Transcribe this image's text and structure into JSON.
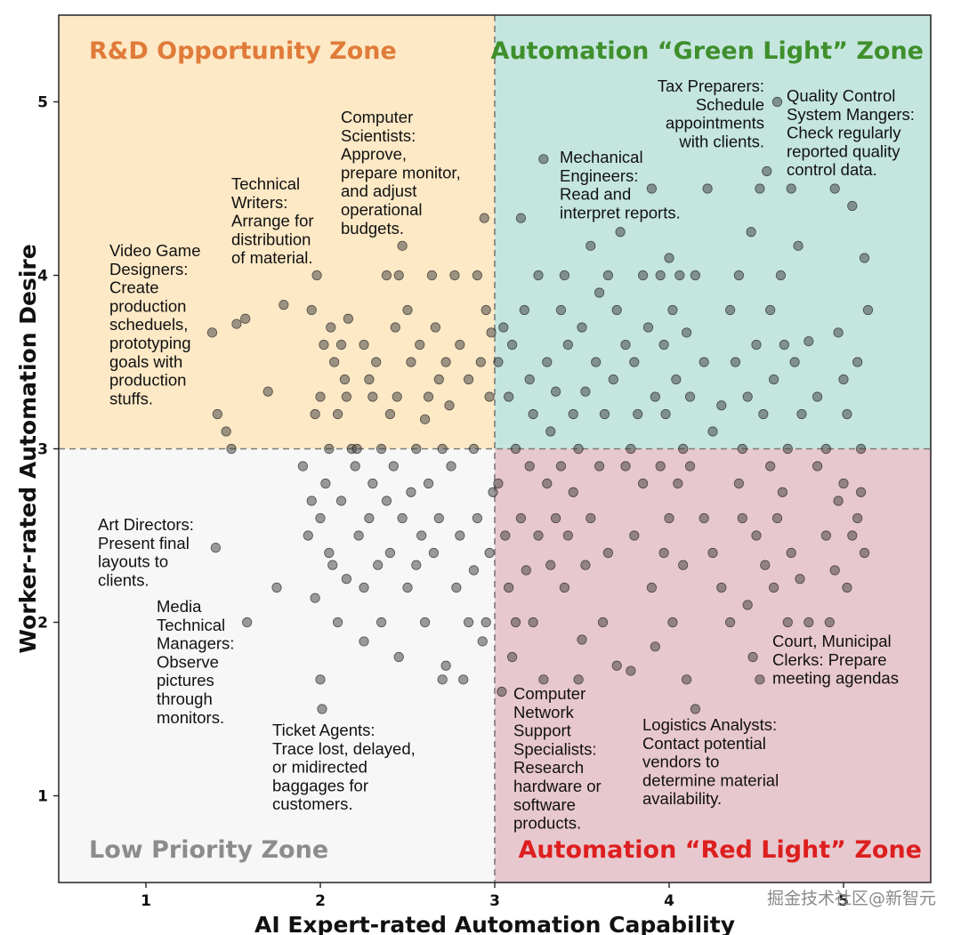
{
  "chart_data": {
    "type": "scatter",
    "title": "",
    "xlabel": "AI Expert-rated Automation Capability",
    "ylabel": "Worker-rated Automation Desire",
    "xlim": [
      0.5,
      5.5
    ],
    "ylim": [
      0.5,
      5.5
    ],
    "xticks": [
      "1",
      "2",
      "3",
      "4",
      "5"
    ],
    "yticks": [
      "1",
      "2",
      "3",
      "4",
      "5"
    ],
    "threshold_x": 3,
    "threshold_y": 3,
    "legend": "none",
    "grid": false,
    "zones": [
      {
        "name": "R&D Opportunity Zone",
        "fill": "#fde9c6",
        "title_color": "#e07b39",
        "x": [
          0.5,
          3
        ],
        "y": [
          3,
          5.5
        ]
      },
      {
        "name": "Automation “Green Light” Zone",
        "fill": "#c5e6df",
        "title_color": "#3f8f2c",
        "x": [
          3,
          5.5
        ],
        "y": [
          3,
          5.5
        ]
      },
      {
        "name": "Low Priority Zone",
        "fill": "#f7f7f7",
        "title_color": "#8c8c8c",
        "x": [
          0.5,
          3
        ],
        "y": [
          0.5,
          3
        ]
      },
      {
        "name": "Automation “Red Light” Zone",
        "fill": "#e8c8cf",
        "title_color": "#dd1f1f",
        "x": [
          3,
          5.5
        ],
        "y": [
          0.5,
          3
        ]
      }
    ],
    "annotations": [
      {
        "lines": [
          "Video Game",
          "Designers:",
          "Create",
          "production",
          "scheduels,",
          "prototyping",
          "goals with",
          "production",
          "stuffs."
        ],
        "x": 1.3,
        "y": 3.7
      },
      {
        "lines": [
          "Technical",
          "Writers:",
          "Arrange for",
          "distribution",
          "of material."
        ],
        "x": 1.5,
        "y": 3.2
      },
      {
        "lines": [
          "Computer",
          "Scientists:",
          "Approve,",
          "prepare monitor,",
          "and adjust",
          "operational",
          "budgets."
        ],
        "x": 1.5,
        "y": 3.5
      },
      {
        "lines": [
          "Mechanical",
          "Engineers:",
          "Read and",
          "interpret reports."
        ],
        "x": 3.3,
        "y": 4.66
      },
      {
        "lines": [
          "Tax Preparers:",
          "Schedule",
          "appointments",
          "with clients."
        ],
        "x": 4.57,
        "y": 5.0
      },
      {
        "lines": [
          "Quality Control",
          "System Mangers:",
          "Check regularly",
          "reported quality",
          "control data."
        ],
        "x": 4.9,
        "y": 4.5
      },
      {
        "lines": [
          "Art Directors:",
          "Present final",
          "layouts to",
          "clients."
        ],
        "x": 1.4,
        "y": 2.43
      },
      {
        "lines": [
          "Media",
          "Technical",
          "Managers:",
          "Observe",
          "pictures",
          "through",
          "monitors."
        ],
        "x": 1.58,
        "y": 2.0
      },
      {
        "lines": [
          "Ticket Agents:",
          "Trace lost, delayed,",
          "or midirected",
          "baggages for",
          "customers."
        ],
        "x": 2.0,
        "y": 1.5
      },
      {
        "lines": [
          "Computer",
          "Network",
          "Support",
          "Specialists:",
          "Research",
          "hardware or",
          "software",
          "products."
        ],
        "x": 3.02,
        "y": 1.6
      },
      {
        "lines": [
          "Logistics Analysts:",
          "Contact potential",
          "vendors to",
          "determine material",
          "availability."
        ],
        "x": 4.07,
        "y": 1.5
      },
      {
        "lines": [
          "Court, Municipal",
          "Clerks: Prepare",
          "meeting agendas"
        ],
        "x": 4.7,
        "y": 2.0
      }
    ],
    "series": [
      {
        "points": [
          [
            1.38,
            3.67
          ],
          [
            1.41,
            3.2
          ],
          [
            1.46,
            3.1
          ],
          [
            1.49,
            3.0
          ],
          [
            1.52,
            3.72
          ],
          [
            1.57,
            3.75
          ],
          [
            1.7,
            3.33
          ],
          [
            1.79,
            3.83
          ],
          [
            1.95,
            3.8
          ],
          [
            1.97,
            3.2
          ],
          [
            1.98,
            4.0
          ],
          [
            2.0,
            3.3
          ],
          [
            2.02,
            3.6
          ],
          [
            2.05,
            3.0
          ],
          [
            2.06,
            3.7
          ],
          [
            2.08,
            3.5
          ],
          [
            2.1,
            3.2
          ],
          [
            2.12,
            3.6
          ],
          [
            2.14,
            3.4
          ],
          [
            2.15,
            3.3
          ],
          [
            2.16,
            3.75
          ],
          [
            2.18,
            3.0
          ],
          [
            2.21,
            3.0
          ],
          [
            2.25,
            3.6
          ],
          [
            2.28,
            3.4
          ],
          [
            2.3,
            3.3
          ],
          [
            2.32,
            3.5
          ],
          [
            2.35,
            3.0
          ],
          [
            2.38,
            4.0
          ],
          [
            2.4,
            3.2
          ],
          [
            2.43,
            3.7
          ],
          [
            2.44,
            3.3
          ],
          [
            2.45,
            4.0
          ],
          [
            2.47,
            4.17
          ],
          [
            2.5,
            3.8
          ],
          [
            2.52,
            3.5
          ],
          [
            2.55,
            3.0
          ],
          [
            2.57,
            3.6
          ],
          [
            2.6,
            3.17
          ],
          [
            2.62,
            3.3
          ],
          [
            2.64,
            4.0
          ],
          [
            2.66,
            3.7
          ],
          [
            2.68,
            3.4
          ],
          [
            2.7,
            3.0
          ],
          [
            2.72,
            3.5
          ],
          [
            2.74,
            3.25
          ],
          [
            2.77,
            4.0
          ],
          [
            2.8,
            3.6
          ],
          [
            2.85,
            3.4
          ],
          [
            2.88,
            3.0
          ],
          [
            2.9,
            4.0
          ],
          [
            2.92,
            3.5
          ],
          [
            2.94,
            4.33
          ],
          [
            2.95,
            3.8
          ],
          [
            2.97,
            3.3
          ],
          [
            2.98,
            3.67
          ],
          [
            1.4,
            2.43
          ],
          [
            1.58,
            2.0
          ],
          [
            1.75,
            2.2
          ],
          [
            1.9,
            2.9
          ],
          [
            1.93,
            2.5
          ],
          [
            1.95,
            2.7
          ],
          [
            1.97,
            2.14
          ],
          [
            2.0,
            2.6
          ],
          [
            2.0,
            1.67
          ],
          [
            2.01,
            1.5
          ],
          [
            2.03,
            2.8
          ],
          [
            2.05,
            2.4
          ],
          [
            2.07,
            2.33
          ],
          [
            2.1,
            2.0
          ],
          [
            2.12,
            2.7
          ],
          [
            2.15,
            2.25
          ],
          [
            2.2,
            2.9
          ],
          [
            2.22,
            2.5
          ],
          [
            2.25,
            2.2
          ],
          [
            2.25,
            1.89
          ],
          [
            2.28,
            2.6
          ],
          [
            2.3,
            2.8
          ],
          [
            2.33,
            2.33
          ],
          [
            2.35,
            2.0
          ],
          [
            2.38,
            2.7
          ],
          [
            2.4,
            2.4
          ],
          [
            2.42,
            2.9
          ],
          [
            2.45,
            1.8
          ],
          [
            2.47,
            2.6
          ],
          [
            2.5,
            2.2
          ],
          [
            2.52,
            2.75
          ],
          [
            2.55,
            2.33
          ],
          [
            2.58,
            2.5
          ],
          [
            2.6,
            2.0
          ],
          [
            2.62,
            2.8
          ],
          [
            2.65,
            2.4
          ],
          [
            2.68,
            2.6
          ],
          [
            2.7,
            1.67
          ],
          [
            2.72,
            1.75
          ],
          [
            2.75,
            2.9
          ],
          [
            2.78,
            2.2
          ],
          [
            2.8,
            2.5
          ],
          [
            2.82,
            1.67
          ],
          [
            2.85,
            2.0
          ],
          [
            2.88,
            2.3
          ],
          [
            2.9,
            2.6
          ],
          [
            2.93,
            1.89
          ],
          [
            2.95,
            2.0
          ],
          [
            2.97,
            2.4
          ],
          [
            2.99,
            2.75
          ],
          [
            3.02,
            3.5
          ],
          [
            3.05,
            3.7
          ],
          [
            3.08,
            3.3
          ],
          [
            3.1,
            3.6
          ],
          [
            3.12,
            3.0
          ],
          [
            3.15,
            4.33
          ],
          [
            3.17,
            3.8
          ],
          [
            3.2,
            3.4
          ],
          [
            3.22,
            3.2
          ],
          [
            3.25,
            4.0
          ],
          [
            3.28,
            4.67
          ],
          [
            3.3,
            3.5
          ],
          [
            3.32,
            3.1
          ],
          [
            3.35,
            3.33
          ],
          [
            3.38,
            3.8
          ],
          [
            3.4,
            4.0
          ],
          [
            3.42,
            3.6
          ],
          [
            3.45,
            3.2
          ],
          [
            3.48,
            3.0
          ],
          [
            3.5,
            3.7
          ],
          [
            3.52,
            3.33
          ],
          [
            3.55,
            4.17
          ],
          [
            3.58,
            3.5
          ],
          [
            3.6,
            3.9
          ],
          [
            3.63,
            3.2
          ],
          [
            3.65,
            4.0
          ],
          [
            3.68,
            3.4
          ],
          [
            3.7,
            3.8
          ],
          [
            3.72,
            4.25
          ],
          [
            3.75,
            3.6
          ],
          [
            3.78,
            3.0
          ],
          [
            3.8,
            3.5
          ],
          [
            3.82,
            3.2
          ],
          [
            3.85,
            4.0
          ],
          [
            3.88,
            3.7
          ],
          [
            3.9,
            4.5
          ],
          [
            3.92,
            3.3
          ],
          [
            3.95,
            4.0
          ],
          [
            3.97,
            3.6
          ],
          [
            3.98,
            3.2
          ],
          [
            4.0,
            4.1
          ],
          [
            4.02,
            3.8
          ],
          [
            4.04,
            3.4
          ],
          [
            4.06,
            4.0
          ],
          [
            4.08,
            3.0
          ],
          [
            4.1,
            3.67
          ],
          [
            4.12,
            3.3
          ],
          [
            4.15,
            4.0
          ],
          [
            4.2,
            3.5
          ],
          [
            4.22,
            4.5
          ],
          [
            4.25,
            3.1
          ],
          [
            4.3,
            3.25
          ],
          [
            4.35,
            3.8
          ],
          [
            4.38,
            3.5
          ],
          [
            4.4,
            4.0
          ],
          [
            4.42,
            3.0
          ],
          [
            4.45,
            3.3
          ],
          [
            4.47,
            4.25
          ],
          [
            4.5,
            3.6
          ],
          [
            4.52,
            4.5
          ],
          [
            4.54,
            3.2
          ],
          [
            4.56,
            4.6
          ],
          [
            4.58,
            3.8
          ],
          [
            4.6,
            3.4
          ],
          [
            4.62,
            5.0
          ],
          [
            4.64,
            4.0
          ],
          [
            4.66,
            3.6
          ],
          [
            4.68,
            3.0
          ],
          [
            4.7,
            4.5
          ],
          [
            4.72,
            3.5
          ],
          [
            4.74,
            4.17
          ],
          [
            4.76,
            3.2
          ],
          [
            4.8,
            3.62
          ],
          [
            4.85,
            3.3
          ],
          [
            4.9,
            3.0
          ],
          [
            4.95,
            4.5
          ],
          [
            4.97,
            3.67
          ],
          [
            5.0,
            3.4
          ],
          [
            5.02,
            3.2
          ],
          [
            5.05,
            4.4
          ],
          [
            5.08,
            3.5
          ],
          [
            5.1,
            3.0
          ],
          [
            5.12,
            4.1
          ],
          [
            5.14,
            3.8
          ],
          [
            3.02,
            2.8
          ],
          [
            3.04,
            1.6
          ],
          [
            3.06,
            2.5
          ],
          [
            3.08,
            2.2
          ],
          [
            3.1,
            1.8
          ],
          [
            3.12,
            2.0
          ],
          [
            3.15,
            2.6
          ],
          [
            3.18,
            2.3
          ],
          [
            3.2,
            2.9
          ],
          [
            3.22,
            2.0
          ],
          [
            3.25,
            2.5
          ],
          [
            3.28,
            1.67
          ],
          [
            3.3,
            2.8
          ],
          [
            3.32,
            2.33
          ],
          [
            3.35,
            2.6
          ],
          [
            3.38,
            2.9
          ],
          [
            3.4,
            2.2
          ],
          [
            3.42,
            2.5
          ],
          [
            3.45,
            2.75
          ],
          [
            3.48,
            1.67
          ],
          [
            3.5,
            1.9
          ],
          [
            3.52,
            2.33
          ],
          [
            3.55,
            2.6
          ],
          [
            3.6,
            2.9
          ],
          [
            3.62,
            2.0
          ],
          [
            3.65,
            2.4
          ],
          [
            3.7,
            1.75
          ],
          [
            3.75,
            2.9
          ],
          [
            3.78,
            1.72
          ],
          [
            3.8,
            2.5
          ],
          [
            3.85,
            2.8
          ],
          [
            3.9,
            2.2
          ],
          [
            3.92,
            1.86
          ],
          [
            3.95,
            2.9
          ],
          [
            3.97,
            2.4
          ],
          [
            4.0,
            2.6
          ],
          [
            4.02,
            2.0
          ],
          [
            4.05,
            2.8
          ],
          [
            4.08,
            2.33
          ],
          [
            4.1,
            1.67
          ],
          [
            4.12,
            2.9
          ],
          [
            4.15,
            1.5
          ],
          [
            4.2,
            2.6
          ],
          [
            4.25,
            2.4
          ],
          [
            4.3,
            2.2
          ],
          [
            4.35,
            2.0
          ],
          [
            4.4,
            2.8
          ],
          [
            4.42,
            2.6
          ],
          [
            4.45,
            2.1
          ],
          [
            4.48,
            1.8
          ],
          [
            4.5,
            2.5
          ],
          [
            4.52,
            1.67
          ],
          [
            4.55,
            2.33
          ],
          [
            4.58,
            2.9
          ],
          [
            4.6,
            2.2
          ],
          [
            4.62,
            2.6
          ],
          [
            4.65,
            2.75
          ],
          [
            4.68,
            2.0
          ],
          [
            4.7,
            2.4
          ],
          [
            4.75,
            2.25
          ],
          [
            4.8,
            2.0
          ],
          [
            4.85,
            2.9
          ],
          [
            4.9,
            2.5
          ],
          [
            4.92,
            2.0
          ],
          [
            4.95,
            2.3
          ],
          [
            4.97,
            2.7
          ],
          [
            5.0,
            2.8
          ],
          [
            5.02,
            2.2
          ],
          [
            5.05,
            2.5
          ],
          [
            5.08,
            2.6
          ],
          [
            5.1,
            2.75
          ],
          [
            5.12,
            2.4
          ]
        ]
      }
    ]
  },
  "watermark": "掘金技术社区@新智元"
}
